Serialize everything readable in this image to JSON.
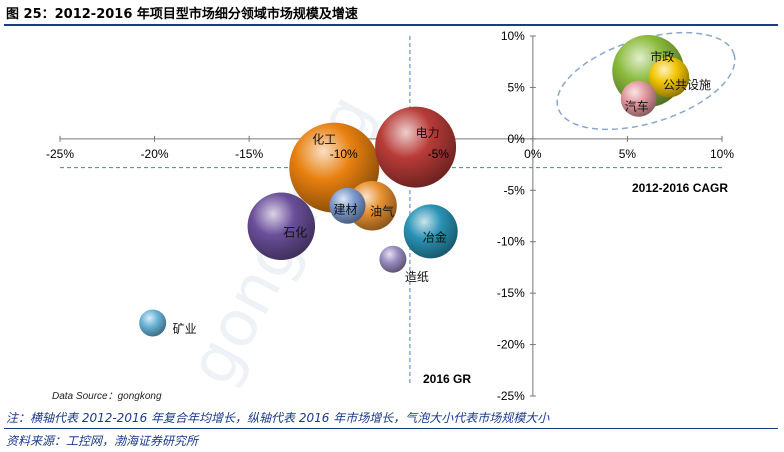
{
  "figure": {
    "title": "图 25：2012-2016 年项目型市场细分领域市场规模及增速",
    "note": "注：横轴代表 2012-2016 年复合年均增长，纵轴代表 2016 年市场增长，气泡大小代表市场规模大小",
    "source": "资料来源：工控网，渤海证券研究所"
  },
  "chart_data": {
    "type": "bubble",
    "xlim": [
      -25,
      10
    ],
    "ylim": [
      -25,
      10
    ],
    "x_ticks": [
      "-25%",
      "-20%",
      "-15%",
      "-10%",
      "-5%",
      "0%",
      "5%",
      "10%"
    ],
    "y_ticks": [
      "10%",
      "5%",
      "0%",
      "-5%",
      "-10%",
      "-15%",
      "-20%",
      "-25%"
    ],
    "x_axis_label": "2012-2016 CAGR",
    "y_axis_label": "2016 GR",
    "data_source_label": "Data Source：gongkong",
    "reference_lines": {
      "x": -6.5,
      "y": -2.8
    },
    "series": [
      {
        "name": "化工",
        "x": -10.5,
        "y": -2.8,
        "size": 10,
        "color": "#e8800f"
      },
      {
        "name": "电力",
        "x": -6.2,
        "y": -0.8,
        "size": 9,
        "color": "#b83b37"
      },
      {
        "name": "石化",
        "x": -13.3,
        "y": -8.5,
        "size": 7.5,
        "color": "#6a4f9a"
      },
      {
        "name": "油气",
        "x": -8.5,
        "y": -6.5,
        "size": 5.5,
        "color": "#e8902f"
      },
      {
        "name": "建材",
        "x": -9.8,
        "y": -6.5,
        "size": 4,
        "color": "#7d9bd0"
      },
      {
        "name": "冶金",
        "x": -5.4,
        "y": -9.0,
        "size": 6,
        "color": "#2a93b5"
      },
      {
        "name": "造纸",
        "x": -7.4,
        "y": -11.7,
        "size": 3,
        "color": "#9a8cc0"
      },
      {
        "name": "矿业",
        "x": -20.1,
        "y": -17.9,
        "size": 3,
        "color": "#6ab4d8"
      },
      {
        "name": "市政",
        "x": 6.1,
        "y": 6.6,
        "size": 8,
        "color": "#8aba3c"
      },
      {
        "name": "公共设施",
        "x": 7.2,
        "y": 6.0,
        "size": 4.5,
        "color": "#f2c500"
      },
      {
        "name": "汽车",
        "x": 5.6,
        "y": 3.9,
        "size": 4,
        "color": "#e39aa0"
      }
    ]
  }
}
